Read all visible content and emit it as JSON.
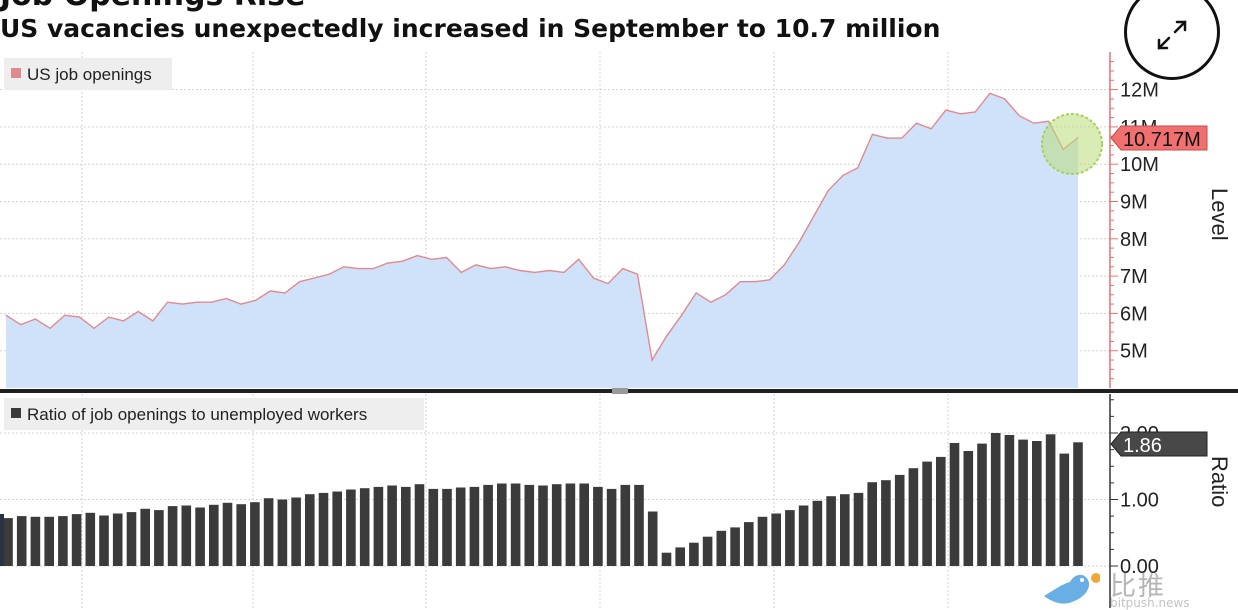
{
  "header": {
    "title": "Job Openings Rise",
    "subtitle": "US vacancies unexpectedly increased in September to 10.7 million"
  },
  "chart_data": [
    {
      "type": "area",
      "legend": "US job openings",
      "ylabel": "Level",
      "yticks": [
        "5M",
        "6M",
        "7M",
        "8M",
        "9M",
        "10M",
        "11M",
        "12M"
      ],
      "ylim": [
        4,
        12.9
      ],
      "last_value_label": "10.717M",
      "colors": {
        "line": "#e08a8f",
        "fill": "#cfe2fa",
        "badge": "#f07070"
      },
      "series": [
        {
          "name": "US job openings",
          "values": [
            5.95,
            5.7,
            5.85,
            5.6,
            5.95,
            5.9,
            5.6,
            5.9,
            5.8,
            6.05,
            5.8,
            6.3,
            6.25,
            6.3,
            6.3,
            6.4,
            6.25,
            6.35,
            6.6,
            6.55,
            6.85,
            6.95,
            7.05,
            7.25,
            7.2,
            7.2,
            7.35,
            7.4,
            7.55,
            7.45,
            7.5,
            7.1,
            7.3,
            7.2,
            7.25,
            7.15,
            7.1,
            7.15,
            7.1,
            7.45,
            6.95,
            6.8,
            7.2,
            7.05,
            4.75,
            5.4,
            5.95,
            6.55,
            6.3,
            6.5,
            6.85,
            6.85,
            6.9,
            7.3,
            7.9,
            8.6,
            9.3,
            9.7,
            9.9,
            10.8,
            10.7,
            10.7,
            11.1,
            10.95,
            11.45,
            11.35,
            11.4,
            11.9,
            11.75,
            11.3,
            11.1,
            11.15,
            10.4,
            10.717
          ]
        }
      ]
    },
    {
      "type": "bar",
      "legend": "Ratio of job openings to unemployed workers",
      "ylabel": "Ratio",
      "yticks": [
        "0.00",
        "1.00",
        "2.00"
      ],
      "ylim": [
        0,
        2.6
      ],
      "last_value_label": "1.86",
      "colors": {
        "bar": "#3b3b3b",
        "badge": "#484848"
      },
      "series": [
        {
          "name": "Ratio of job openings to unemployed workers",
          "values": [
            0.72,
            0.75,
            0.74,
            0.74,
            0.75,
            0.78,
            0.8,
            0.76,
            0.79,
            0.81,
            0.86,
            0.84,
            0.9,
            0.91,
            0.88,
            0.92,
            0.95,
            0.93,
            0.96,
            1.02,
            1.0,
            1.03,
            1.08,
            1.1,
            1.12,
            1.15,
            1.17,
            1.19,
            1.21,
            1.19,
            1.23,
            1.16,
            1.16,
            1.18,
            1.19,
            1.22,
            1.24,
            1.24,
            1.22,
            1.21,
            1.23,
            1.24,
            1.24,
            1.19,
            1.16,
            1.22,
            1.22,
            0.82,
            0.2,
            0.28,
            0.35,
            0.44,
            0.53,
            0.58,
            0.66,
            0.74,
            0.79,
            0.84,
            0.91,
            0.98,
            1.05,
            1.08,
            1.1,
            1.26,
            1.29,
            1.37,
            1.47,
            1.57,
            1.64,
            1.85,
            1.73,
            1.84,
            2.0,
            1.97,
            1.9,
            1.88,
            1.98,
            1.69,
            1.86
          ]
        }
      ]
    }
  ],
  "watermark": {
    "text": "比推",
    "subtext": "bitpush.news"
  }
}
